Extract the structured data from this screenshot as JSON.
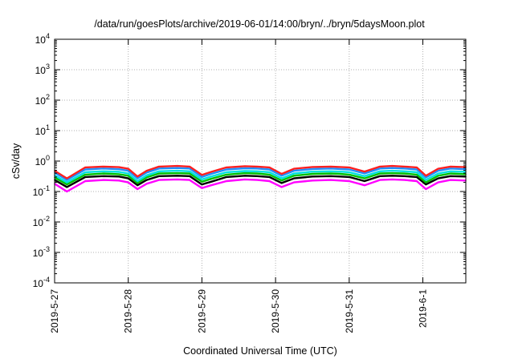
{
  "chart_data": {
    "type": "line",
    "title": "/data/run/goesPlots/archive/2019-06-01/14:00/bryn/../bryn/5daysMoon.plot",
    "xlabel": "Coordinated Universal Time (UTC)",
    "ylabel": "cSv/day",
    "y_scale": "log",
    "ylim": [
      0.0001,
      10000
    ],
    "y_ticks": [
      {
        "base": "10",
        "exp": "-4",
        "value": 0.0001
      },
      {
        "base": "10",
        "exp": "-3",
        "value": 0.001
      },
      {
        "base": "10",
        "exp": "-2",
        "value": 0.01
      },
      {
        "base": "10",
        "exp": "-1",
        "value": 0.1
      },
      {
        "base": "10",
        "exp": "0",
        "value": 1
      },
      {
        "base": "10",
        "exp": "1",
        "value": 10
      },
      {
        "base": "10",
        "exp": "2",
        "value": 100
      },
      {
        "base": "10",
        "exp": "3",
        "value": 1000
      },
      {
        "base": "10",
        "exp": "4",
        "value": 10000
      }
    ],
    "x_range": [
      "2019-05-27T00:00",
      "2019-06-01T14:00"
    ],
    "x_ticks": [
      "2019-5-27",
      "2019-5-28",
      "2019-5-29",
      "2019-5-30",
      "2019-5-31",
      "2019-6-1"
    ],
    "grid": true,
    "series": [
      {
        "color": "#ff00ff",
        "x": [
          "2019-05-27T00:00",
          "2019-05-27T04:00",
          "2019-05-27T10:00",
          "2019-05-27T16:00",
          "2019-05-27T21:00",
          "2019-05-28T00:00",
          "2019-05-28T03:00",
          "2019-05-28T06:00",
          "2019-05-28T10:00",
          "2019-05-28T16:00",
          "2019-05-28T20:00",
          "2019-05-29T00:00",
          "2019-05-29T03:00",
          "2019-05-29T08:00",
          "2019-05-29T14:00",
          "2019-05-29T18:00",
          "2019-05-29T22:00",
          "2019-05-30T02:00",
          "2019-05-30T06:00",
          "2019-05-30T12:00",
          "2019-05-30T18:00",
          "2019-05-30T21:00",
          "2019-05-31T00:00",
          "2019-05-31T05:00",
          "2019-05-31T10:00",
          "2019-05-31T14:00",
          "2019-05-31T18:00",
          "2019-05-31T22:00",
          "2019-06-01T01:00",
          "2019-06-01T05:00",
          "2019-06-01T09:00",
          "2019-06-01T14:00"
        ],
        "values": [
          0.18,
          0.1,
          0.22,
          0.24,
          0.23,
          0.2,
          0.12,
          0.18,
          0.24,
          0.25,
          0.24,
          0.13,
          0.16,
          0.22,
          0.25,
          0.24,
          0.22,
          0.14,
          0.2,
          0.23,
          0.24,
          0.23,
          0.22,
          0.16,
          0.24,
          0.25,
          0.24,
          0.22,
          0.12,
          0.2,
          0.24,
          0.23
        ]
      },
      {
        "color": "#000000",
        "x": [
          "2019-05-27T00:00",
          "2019-05-27T04:00",
          "2019-05-27T10:00",
          "2019-05-27T16:00",
          "2019-05-27T21:00",
          "2019-05-28T00:00",
          "2019-05-28T03:00",
          "2019-05-28T06:00",
          "2019-05-28T10:00",
          "2019-05-28T16:00",
          "2019-05-28T20:00",
          "2019-05-29T00:00",
          "2019-05-29T03:00",
          "2019-05-29T08:00",
          "2019-05-29T14:00",
          "2019-05-29T18:00",
          "2019-05-29T22:00",
          "2019-05-30T02:00",
          "2019-05-30T06:00",
          "2019-05-30T12:00",
          "2019-05-30T18:00",
          "2019-05-30T21:00",
          "2019-05-31T00:00",
          "2019-05-31T05:00",
          "2019-05-31T10:00",
          "2019-05-31T14:00",
          "2019-05-31T18:00",
          "2019-05-31T22:00",
          "2019-06-01T01:00",
          "2019-06-01T05:00",
          "2019-06-01T09:00",
          "2019-06-01T14:00"
        ],
        "values": [
          0.24,
          0.14,
          0.3,
          0.32,
          0.31,
          0.27,
          0.16,
          0.24,
          0.32,
          0.33,
          0.32,
          0.17,
          0.21,
          0.3,
          0.33,
          0.32,
          0.3,
          0.19,
          0.27,
          0.31,
          0.32,
          0.31,
          0.3,
          0.22,
          0.32,
          0.33,
          0.32,
          0.3,
          0.17,
          0.27,
          0.32,
          0.31
        ]
      },
      {
        "color": "#00c000",
        "x": [
          "2019-05-27T00:00",
          "2019-05-27T04:00",
          "2019-05-27T10:00",
          "2019-05-27T16:00",
          "2019-05-27T21:00",
          "2019-05-28T00:00",
          "2019-05-28T03:00",
          "2019-05-28T06:00",
          "2019-05-28T10:00",
          "2019-05-28T16:00",
          "2019-05-28T20:00",
          "2019-05-29T00:00",
          "2019-05-29T03:00",
          "2019-05-29T08:00",
          "2019-05-29T14:00",
          "2019-05-29T18:00",
          "2019-05-29T22:00",
          "2019-05-30T02:00",
          "2019-05-30T06:00",
          "2019-05-30T12:00",
          "2019-05-30T18:00",
          "2019-05-30T21:00",
          "2019-05-31T00:00",
          "2019-05-31T05:00",
          "2019-05-31T10:00",
          "2019-05-31T14:00",
          "2019-05-31T18:00",
          "2019-05-31T22:00",
          "2019-06-01T01:00",
          "2019-06-01T05:00",
          "2019-06-01T09:00",
          "2019-06-01T14:00"
        ],
        "values": [
          0.29,
          0.17,
          0.36,
          0.39,
          0.37,
          0.33,
          0.19,
          0.29,
          0.39,
          0.4,
          0.39,
          0.21,
          0.26,
          0.36,
          0.4,
          0.39,
          0.36,
          0.23,
          0.33,
          0.38,
          0.39,
          0.38,
          0.36,
          0.27,
          0.39,
          0.4,
          0.39,
          0.36,
          0.2,
          0.33,
          0.39,
          0.37
        ]
      },
      {
        "color": "#00e0e0",
        "x": [
          "2019-05-27T00:00",
          "2019-05-27T04:00",
          "2019-05-27T10:00",
          "2019-05-27T16:00",
          "2019-05-27T21:00",
          "2019-05-28T00:00",
          "2019-05-28T03:00",
          "2019-05-28T06:00",
          "2019-05-28T10:00",
          "2019-05-28T16:00",
          "2019-05-28T20:00",
          "2019-05-29T00:00",
          "2019-05-29T03:00",
          "2019-05-29T08:00",
          "2019-05-29T14:00",
          "2019-05-29T18:00",
          "2019-05-29T22:00",
          "2019-05-30T02:00",
          "2019-05-30T06:00",
          "2019-05-30T12:00",
          "2019-05-30T18:00",
          "2019-05-30T21:00",
          "2019-05-31T00:00",
          "2019-05-31T05:00",
          "2019-05-31T10:00",
          "2019-05-31T14:00",
          "2019-05-31T18:00",
          "2019-05-31T22:00",
          "2019-06-01T01:00",
          "2019-06-01T05:00",
          "2019-06-01T09:00",
          "2019-06-01T14:00"
        ],
        "values": [
          0.34,
          0.2,
          0.43,
          0.46,
          0.44,
          0.39,
          0.22,
          0.34,
          0.46,
          0.48,
          0.46,
          0.25,
          0.31,
          0.43,
          0.47,
          0.46,
          0.43,
          0.27,
          0.39,
          0.45,
          0.46,
          0.45,
          0.43,
          0.32,
          0.46,
          0.48,
          0.46,
          0.43,
          0.24,
          0.39,
          0.46,
          0.44
        ]
      },
      {
        "color": "#1e90ff",
        "x": [
          "2019-05-27T00:00",
          "2019-05-27T04:00",
          "2019-05-27T10:00",
          "2019-05-27T16:00",
          "2019-05-27T21:00",
          "2019-05-28T00:00",
          "2019-05-28T03:00",
          "2019-05-28T06:00",
          "2019-05-28T10:00",
          "2019-05-28T16:00",
          "2019-05-28T20:00",
          "2019-05-29T00:00",
          "2019-05-29T03:00",
          "2019-05-29T08:00",
          "2019-05-29T14:00",
          "2019-05-29T18:00",
          "2019-05-29T22:00",
          "2019-05-30T02:00",
          "2019-05-30T06:00",
          "2019-05-30T12:00",
          "2019-05-30T18:00",
          "2019-05-30T21:00",
          "2019-05-31T00:00",
          "2019-05-31T05:00",
          "2019-05-31T10:00",
          "2019-05-31T14:00",
          "2019-05-31T18:00",
          "2019-05-31T22:00",
          "2019-06-01T01:00",
          "2019-06-01T05:00",
          "2019-06-01T09:00",
          "2019-06-01T14:00"
        ],
        "values": [
          0.42,
          0.24,
          0.53,
          0.57,
          0.54,
          0.48,
          0.27,
          0.42,
          0.57,
          0.59,
          0.57,
          0.3,
          0.38,
          0.53,
          0.58,
          0.57,
          0.53,
          0.33,
          0.48,
          0.55,
          0.57,
          0.55,
          0.53,
          0.39,
          0.57,
          0.59,
          0.57,
          0.53,
          0.29,
          0.48,
          0.57,
          0.54
        ]
      },
      {
        "color": "#ff2020",
        "x": [
          "2019-05-27T00:00",
          "2019-05-27T04:00",
          "2019-05-27T10:00",
          "2019-05-27T16:00",
          "2019-05-27T21:00",
          "2019-05-28T00:00",
          "2019-05-28T03:00",
          "2019-05-28T06:00",
          "2019-05-28T10:00",
          "2019-05-28T16:00",
          "2019-05-28T20:00",
          "2019-05-29T00:00",
          "2019-05-29T03:00",
          "2019-05-29T08:00",
          "2019-05-29T14:00",
          "2019-05-29T18:00",
          "2019-05-29T22:00",
          "2019-05-30T02:00",
          "2019-05-30T06:00",
          "2019-05-30T12:00",
          "2019-05-30T18:00",
          "2019-05-30T21:00",
          "2019-05-31T00:00",
          "2019-05-31T05:00",
          "2019-05-31T10:00",
          "2019-05-31T14:00",
          "2019-05-31T18:00",
          "2019-05-31T22:00",
          "2019-06-01T01:00",
          "2019-06-01T05:00",
          "2019-06-01T09:00",
          "2019-06-01T14:00"
        ],
        "values": [
          0.48,
          0.27,
          0.62,
          0.66,
          0.63,
          0.56,
          0.31,
          0.48,
          0.66,
          0.69,
          0.66,
          0.35,
          0.44,
          0.62,
          0.68,
          0.66,
          0.62,
          0.38,
          0.56,
          0.64,
          0.66,
          0.64,
          0.62,
          0.45,
          0.66,
          0.69,
          0.66,
          0.62,
          0.33,
          0.56,
          0.66,
          0.63
        ]
      }
    ]
  }
}
